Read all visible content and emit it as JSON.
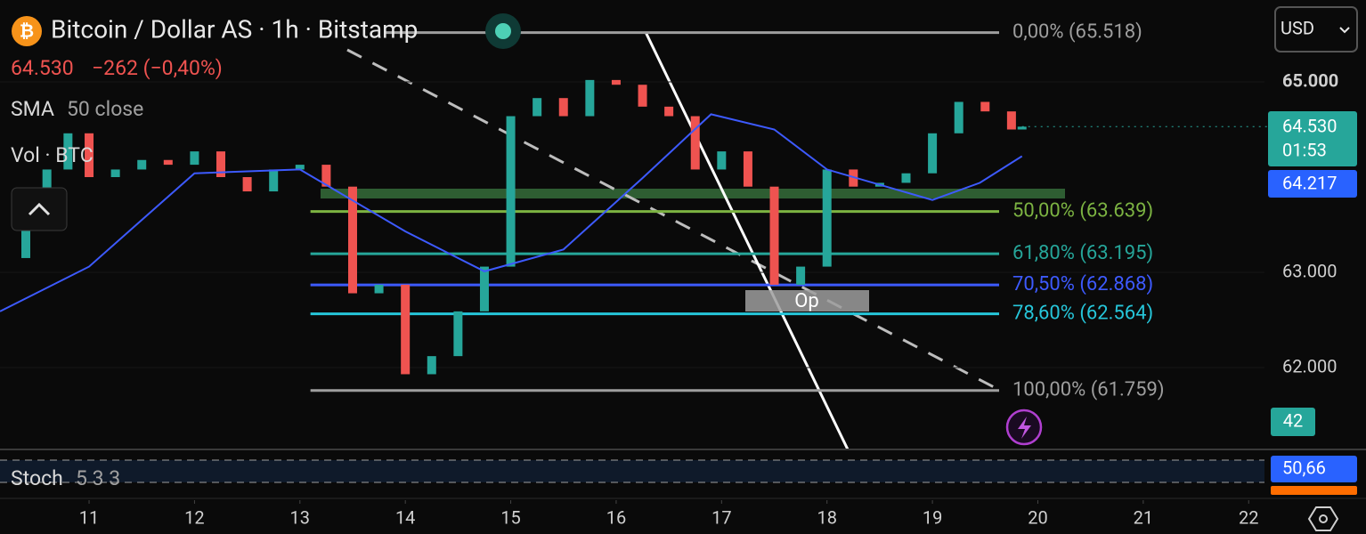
{
  "ui": {
    "title": "Bitcoin / Dollar AS · 1h · Bitstamp",
    "last_price": "64.530",
    "change": "−262 (−0,40%)",
    "sma_label": "SMA",
    "sma_params": "50 close",
    "volume_label": "Vol · BTC",
    "stoch_label": "Stoch",
    "stoch_params": "5 3 3",
    "currency": "USD",
    "price_badge": "64.530",
    "countdown_badge": "01:53",
    "sma_badge": "64.217",
    "volume_badge": "42",
    "stoch_badge": "50,66",
    "annotation": "Op"
  },
  "chart_data": {
    "type": "candlestick",
    "up_color": "#26a69a",
    "down_color": "#ef5350",
    "x": [
      10.2,
      10.4,
      10.6,
      10.8,
      11.0,
      11.25,
      11.5,
      11.75,
      12.0,
      12.25,
      12.5,
      12.75,
      13.0,
      13.25,
      13.5,
      13.75,
      14.0,
      14.25,
      14.5,
      14.75,
      15.0,
      15.25,
      15.5,
      15.75,
      16.0,
      16.25,
      16.5,
      16.75,
      17.0,
      17.25,
      17.5,
      17.75,
      18.0,
      18.25,
      18.5,
      18.75,
      19.0,
      19.25,
      19.5,
      19.75,
      19.85
    ],
    "close": [
      63150,
      63850,
      64080,
      64460,
      64000,
      64080,
      64180,
      64130,
      64270,
      64000,
      63850,
      64080,
      64130,
      63900,
      62780,
      62870,
      61930,
      62120,
      62590,
      63060,
      64640,
      64830,
      64640,
      65020,
      64970,
      64740,
      64640,
      64080,
      64270,
      63900,
      62870,
      63060,
      64080,
      63900,
      63940,
      64040,
      64460,
      64790,
      64690,
      64500,
      64530
    ],
    "sma": {
      "color": "#3d5afe",
      "x": [
        10.155,
        11.0,
        12.0,
        13.0,
        14.0,
        14.75,
        15.5,
        16.25,
        16.9,
        17.5,
        18.0,
        19.0,
        19.45,
        19.85
      ],
      "values": [
        62590,
        63060,
        64040,
        64080,
        63430,
        63010,
        63240,
        63990,
        64660,
        64500,
        64080,
        63760,
        63940,
        64220
      ]
    },
    "fib_levels": [
      {
        "label": "0,00% (65.518)",
        "value": 65518,
        "color": "#9e9e9e",
        "from": 13.8
      },
      {
        "label": "50,00% (63.639)",
        "value": 63639,
        "color": "#7cb342",
        "from": 13.1
      },
      {
        "label": "61,80% (63.195)",
        "value": 63195,
        "color": "#26a69a",
        "from": 13.1
      },
      {
        "label": "70,50% (62.868)",
        "value": 62868,
        "color": "#3d5afe",
        "from": 13.1
      },
      {
        "label": "78,60% (62.564)",
        "value": 62564,
        "color": "#26c6da",
        "from": 13.1
      },
      {
        "label": "100,00% (61.759)",
        "value": 61759,
        "color": "#9e9e9e",
        "from": 13.1
      }
    ],
    "xlim": [
      10.155,
      22.15
    ],
    "xticks": [
      11,
      12,
      13,
      14,
      15,
      16,
      17,
      18,
      19,
      20,
      21,
      22
    ],
    "ylim": [
      61140,
      65860
    ],
    "yticks": [
      {
        "value": 62000,
        "label": "62.000"
      },
      {
        "value": 63000,
        "label": "63.000"
      },
      {
        "value": 65000,
        "label": "65.000"
      }
    ]
  }
}
